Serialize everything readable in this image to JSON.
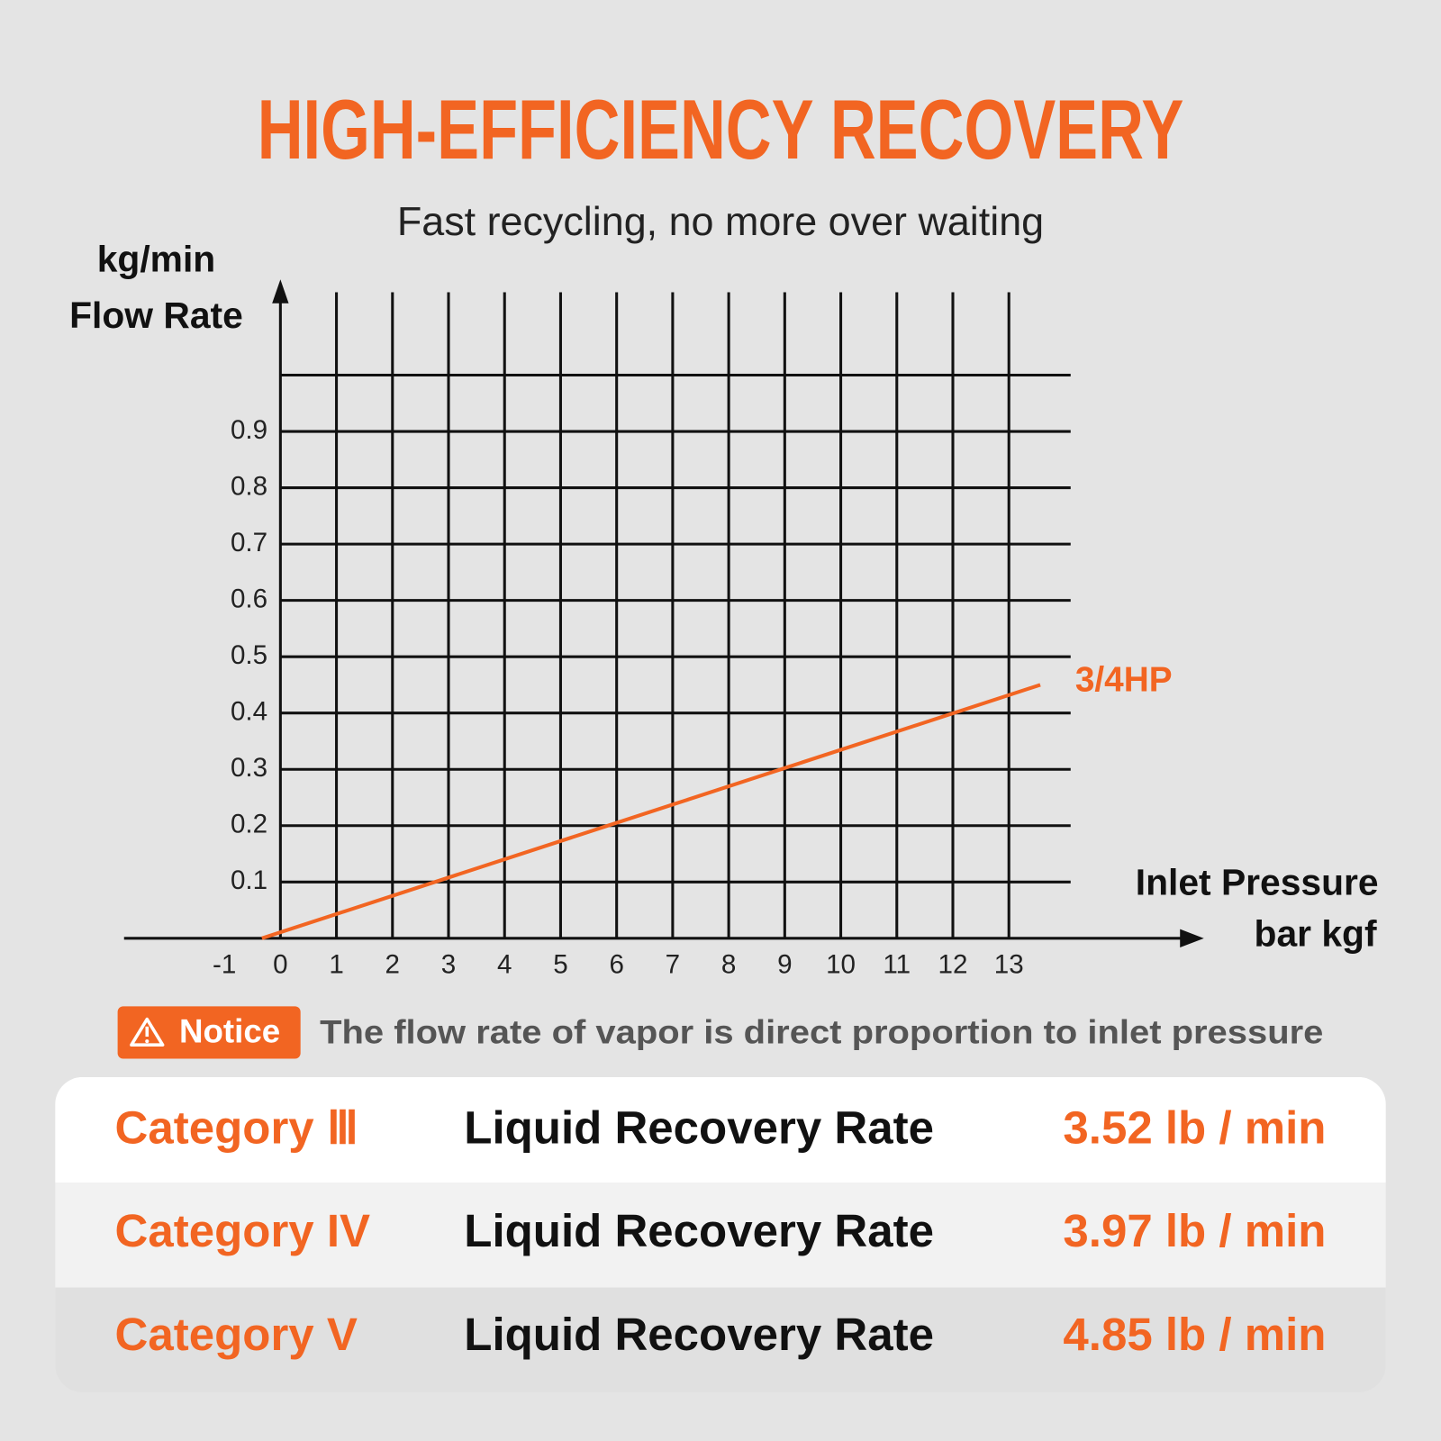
{
  "chart_data": {
    "type": "line",
    "title": "HIGH-EFFICIENCY RECOVERY",
    "subtitle": "Fast recycling, no more over waiting",
    "y_label": [
      "kg/min",
      "Flow Rate"
    ],
    "x_label": [
      "Inlet Pressure",
      "bar kgf"
    ],
    "xlim": [
      -2.79,
      16.48
    ],
    "ylim": [
      0,
      1.17
    ],
    "xticks": [
      -1,
      0,
      1,
      2,
      3,
      4,
      5,
      6,
      7,
      8,
      9,
      10,
      11,
      12,
      13
    ],
    "yticks": [
      0.1,
      0.2,
      0.3,
      0.4,
      0.5,
      0.6,
      0.7,
      0.8,
      0.9
    ],
    "y_grid": [
      0.1,
      0.2,
      0.3,
      0.4,
      0.5,
      0.6,
      0.7,
      0.8,
      0.9,
      1.0
    ],
    "grid": true,
    "series": [
      {
        "name": "3/4HP",
        "color": "#f26522",
        "x": [
          -0.33,
          13.56
        ],
        "values": [
          0,
          0.45
        ]
      }
    ]
  },
  "notice": {
    "label": "Notice",
    "text": "The flow rate of vapor is direct proportion to inlet pressure"
  },
  "table": {
    "rows": [
      [
        "Category Ⅲ",
        "Liquid Recovery Rate",
        "3.52 lb / min"
      ],
      [
        "Category IV",
        "Liquid Recovery Rate",
        "3.97 lb / min"
      ],
      [
        "Category V",
        "Liquid Recovery Rate",
        "4.85 lb / min"
      ]
    ]
  }
}
